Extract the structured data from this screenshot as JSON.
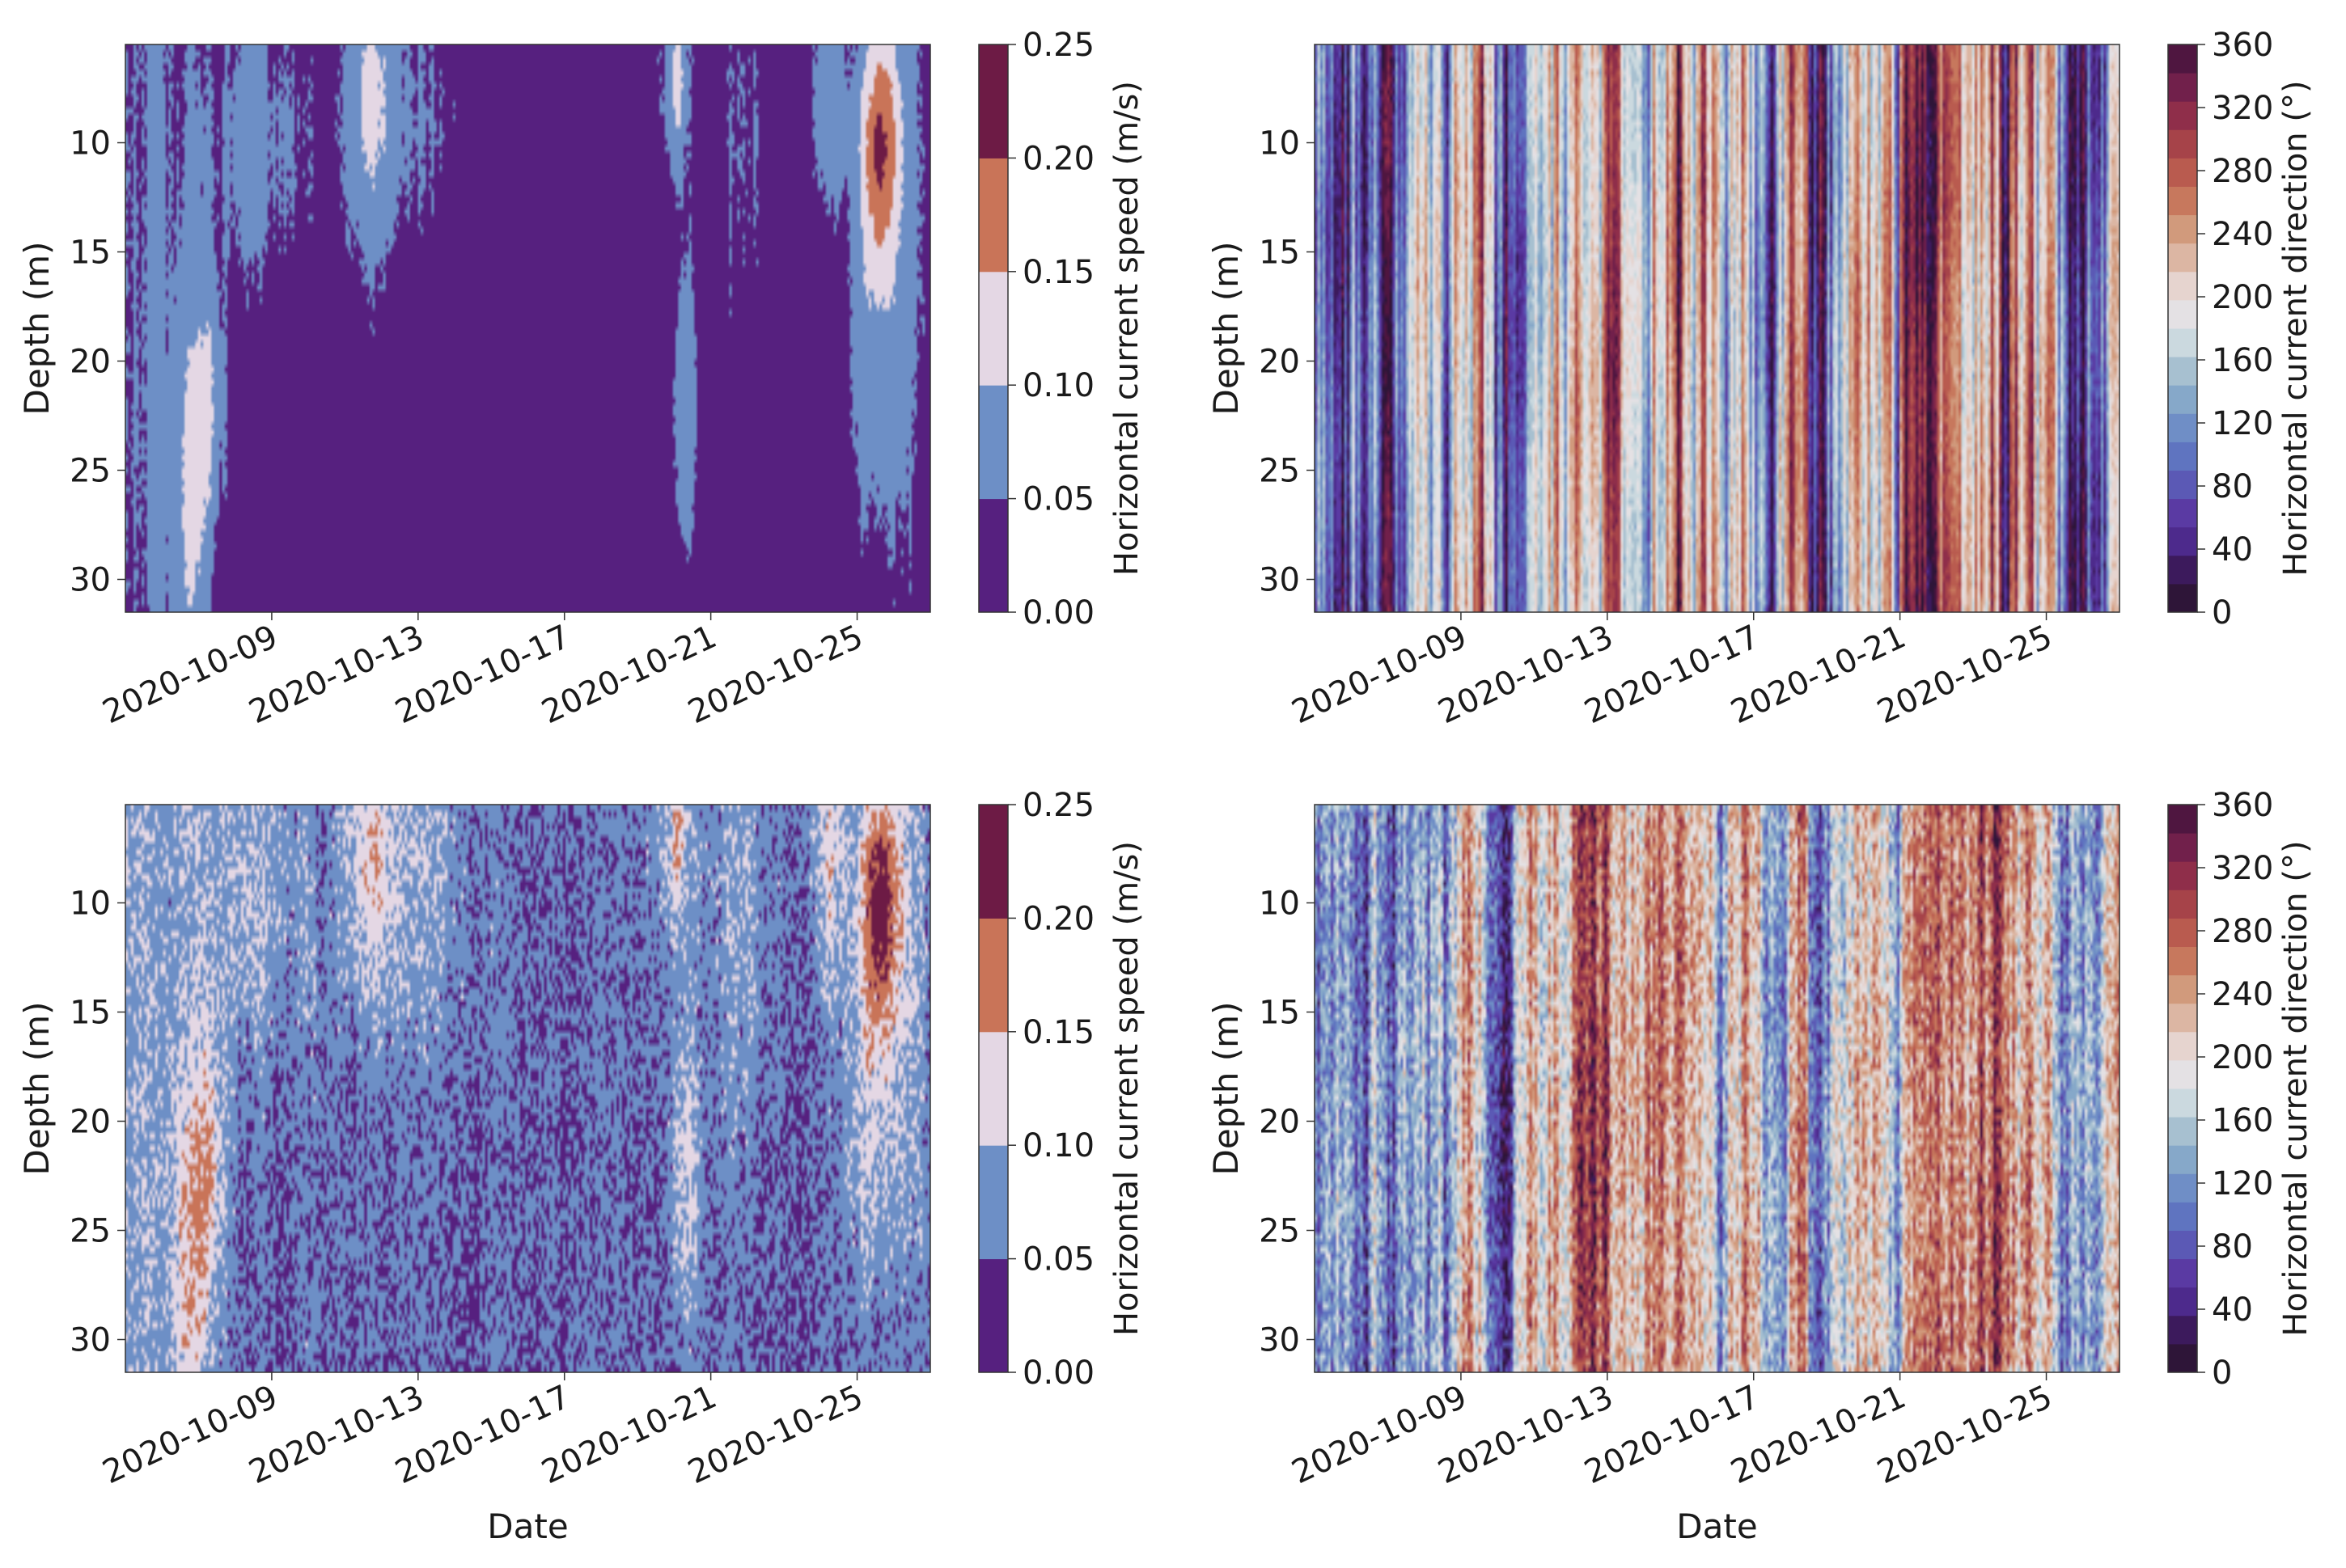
{
  "chart_data": [
    {
      "panel": "top-left",
      "type": "heatmap",
      "title": "",
      "xlabel": "",
      "ylabel": "Depth (m)",
      "x_start": "2020-10-05",
      "x_end": "2020-10-26",
      "x_ticks": [
        "2020-10-09",
        "2020-10-13",
        "2020-10-17",
        "2020-10-21",
        "2020-10-25"
      ],
      "x_tick_days": [
        4,
        8,
        12,
        16,
        20
      ],
      "x_days_total": 22,
      "y_range": [
        5.5,
        31.5
      ],
      "y_ticks": [
        10,
        15,
        20,
        25,
        30
      ],
      "colorbar": {
        "label": "Horizontal current speed (m/s)",
        "ticks": [
          "0.00",
          "0.05",
          "0.10",
          "0.15",
          "0.20",
          "0.25"
        ],
        "colors": [
          "#56207f",
          "#6d8fc6",
          "#e4d7e4",
          "#c97458",
          "#6d1b45"
        ]
      },
      "field": "speed_smooth"
    },
    {
      "panel": "top-right",
      "type": "heatmap",
      "title": "",
      "xlabel": "",
      "ylabel": "Depth (m)",
      "x_start": "2020-10-05",
      "x_end": "2020-10-26",
      "x_ticks": [
        "2020-10-09",
        "2020-10-13",
        "2020-10-17",
        "2020-10-21",
        "2020-10-25"
      ],
      "x_tick_days": [
        4,
        8,
        12,
        16,
        20
      ],
      "x_days_total": 22,
      "y_range": [
        5.5,
        31.5
      ],
      "y_ticks": [
        10,
        15,
        20,
        25,
        30
      ],
      "colorbar": {
        "label": "Horizontal current direction (°)",
        "ticks": [
          "0",
          "40",
          "80",
          "120",
          "160",
          "200",
          "240",
          "280",
          "320",
          "360"
        ],
        "colors": [
          "#2e1538",
          "#3c1a5c",
          "#4d2a8c",
          "#5a3aa3",
          "#5b59b5",
          "#5f74c0",
          "#6f8ec6",
          "#86a8c9",
          "#a7c0d0",
          "#cbd9df",
          "#e4e1e4",
          "#e6d4cf",
          "#dcb6a3",
          "#d19a7c",
          "#c7785d",
          "#b95b4f",
          "#a64349",
          "#8f2e4a",
          "#71204b",
          "#4f1640"
        ]
      },
      "field": "direction_smooth"
    },
    {
      "panel": "bottom-left",
      "type": "heatmap",
      "title": "",
      "xlabel": "Date",
      "ylabel": "Depth (m)",
      "x_start": "2020-10-05",
      "x_end": "2020-10-26",
      "x_ticks": [
        "2020-10-09",
        "2020-10-13",
        "2020-10-17",
        "2020-10-21",
        "2020-10-25"
      ],
      "x_tick_days": [
        4,
        8,
        12,
        16,
        20
      ],
      "x_days_total": 22,
      "y_range": [
        5.5,
        31.5
      ],
      "y_ticks": [
        10,
        15,
        20,
        25,
        30
      ],
      "colorbar": {
        "label": "Horizontal current speed (m/s)",
        "ticks": [
          "0.00",
          "0.05",
          "0.10",
          "0.15",
          "0.20",
          "0.25"
        ],
        "colors": [
          "#56207f",
          "#6d8fc6",
          "#e4d7e4",
          "#c97458",
          "#6d1b45"
        ]
      },
      "field": "speed_noisy"
    },
    {
      "panel": "bottom-right",
      "type": "heatmap",
      "title": "",
      "xlabel": "Date",
      "ylabel": "Depth (m)",
      "x_start": "2020-10-05",
      "x_end": "2020-10-26",
      "x_ticks": [
        "2020-10-09",
        "2020-10-13",
        "2020-10-17",
        "2020-10-21",
        "2020-10-25"
      ],
      "x_tick_days": [
        4,
        8,
        12,
        16,
        20
      ],
      "x_days_total": 22,
      "y_range": [
        5.5,
        31.5
      ],
      "y_ticks": [
        10,
        15,
        20,
        25,
        30
      ],
      "colorbar": {
        "label": "Horizontal current direction (°)",
        "ticks": [
          "0",
          "40",
          "80",
          "120",
          "160",
          "200",
          "240",
          "280",
          "320",
          "360"
        ],
        "colors": [
          "#2e1538",
          "#3c1a5c",
          "#4d2a8c",
          "#5a3aa3",
          "#5b59b5",
          "#5f74c0",
          "#6f8ec6",
          "#86a8c9",
          "#a7c0d0",
          "#cbd9df",
          "#e4e1e4",
          "#e6d4cf",
          "#dcb6a3",
          "#d19a7c",
          "#c7785d",
          "#b95b4f",
          "#a64349",
          "#8f2e4a",
          "#71204b",
          "#4f1640"
        ]
      },
      "field": "direction_noisy"
    }
  ]
}
